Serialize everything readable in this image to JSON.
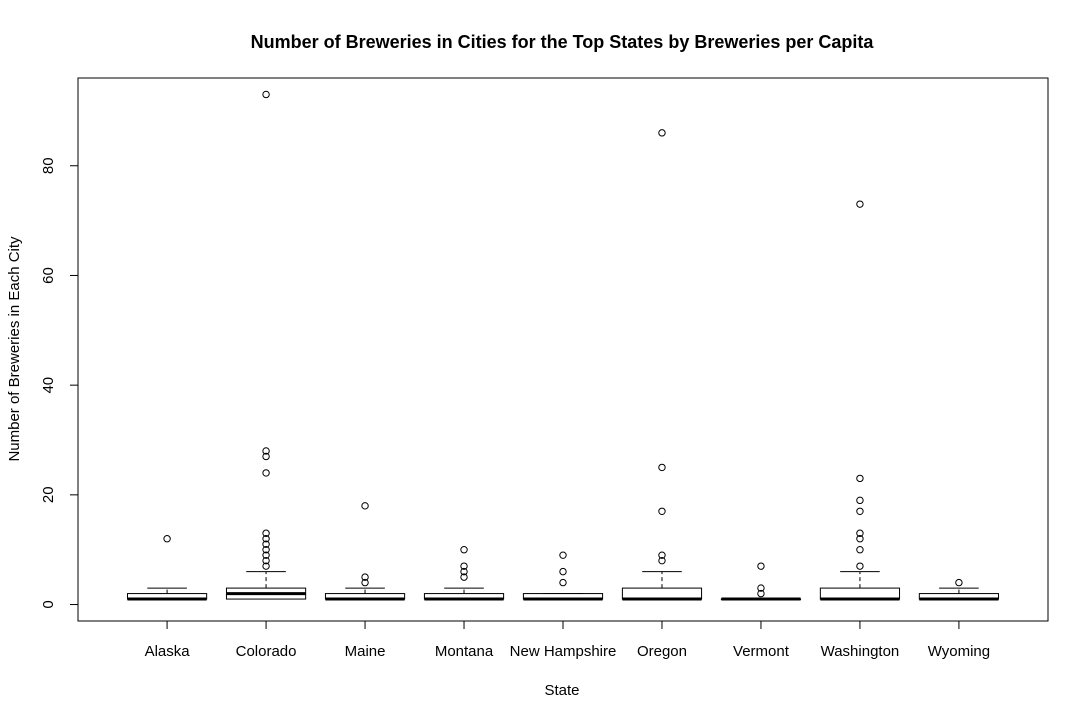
{
  "chart_data": {
    "type": "box",
    "title": "Number of Breweries in Cities for the Top States by Breweries per Capita",
    "xlabel": "State",
    "ylabel": "Number of Breweries in Each City",
    "ylim": [
      -3,
      96
    ],
    "yticks": [
      0,
      20,
      40,
      60,
      80
    ],
    "grid": false,
    "categories": [
      "Alaska",
      "Colorado",
      "Maine",
      "Montana",
      "New Hampshire",
      "Oregon",
      "Vermont",
      "Washington",
      "Wyoming"
    ],
    "boxes": [
      {
        "min": 1,
        "q1": 1,
        "median": 1,
        "q3": 2,
        "max": 3,
        "outliers": [
          12
        ]
      },
      {
        "min": 1,
        "q1": 1,
        "median": 2,
        "q3": 3,
        "max": 6,
        "outliers": [
          7,
          8,
          9,
          10,
          11,
          12,
          13,
          24,
          27,
          28,
          93
        ]
      },
      {
        "min": 1,
        "q1": 1,
        "median": 1,
        "q3": 2,
        "max": 3,
        "outliers": [
          4,
          5,
          18
        ]
      },
      {
        "min": 1,
        "q1": 1,
        "median": 1,
        "q3": 2,
        "max": 3,
        "outliers": [
          5,
          6,
          7,
          10
        ]
      },
      {
        "min": 1,
        "q1": 1,
        "median": 1,
        "q3": 2,
        "max": 2,
        "outliers": [
          4,
          6,
          9
        ]
      },
      {
        "min": 1,
        "q1": 1,
        "median": 1,
        "q3": 3,
        "max": 6,
        "outliers": [
          8,
          9,
          17,
          25,
          86
        ]
      },
      {
        "min": 1,
        "q1": 1,
        "median": 1,
        "q3": 1,
        "max": 1,
        "outliers": [
          2,
          3,
          7
        ]
      },
      {
        "min": 1,
        "q1": 1,
        "median": 1,
        "q3": 3,
        "max": 6,
        "outliers": [
          7,
          10,
          12,
          13,
          17,
          19,
          23,
          73
        ]
      },
      {
        "min": 1,
        "q1": 1,
        "median": 1,
        "q3": 2,
        "max": 3,
        "outliers": [
          4
        ]
      }
    ]
  }
}
